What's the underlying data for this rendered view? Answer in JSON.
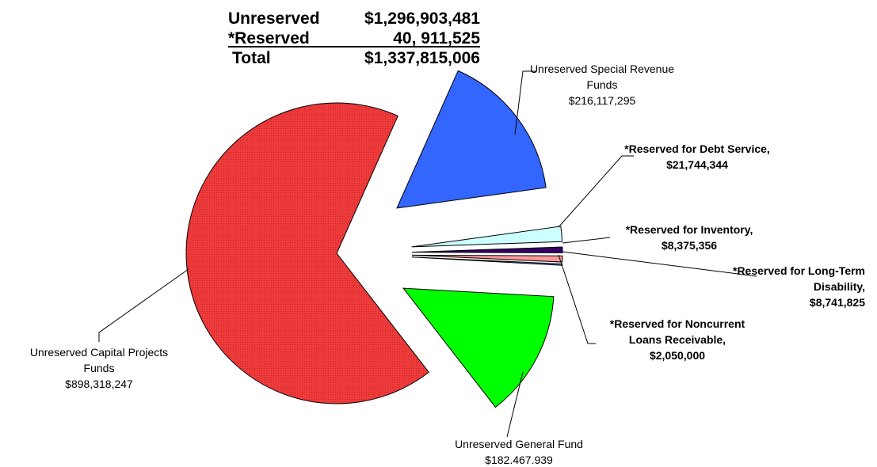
{
  "summary": {
    "rows": [
      {
        "label": "Unreserved",
        "value": "$1,296,903,481"
      },
      {
        "label": "*Reserved",
        "value": "40, 911,525"
      },
      {
        "label": "Total",
        "value": "$1,337,815,006"
      }
    ]
  },
  "chart_data": {
    "type": "pie",
    "categories": [
      "Unreserved Capital Projects Funds",
      "Unreserved Special Revenue Funds",
      "*Reserved for Debt Service,",
      "*Reserved for Inventory,",
      "*Reserved for Long-Term Disability,",
      "*Reserved for Noncurrent Loans Receivable,",
      "Unreserved General Fund"
    ],
    "values": [
      898318247,
      216117295,
      21744344,
      8375356,
      8741825,
      2050000,
      182467939
    ],
    "value_labels": [
      "$898,318,247",
      "$216,117,295",
      "$21,744,344",
      "$8,375,356",
      "$8,741,825",
      "$2,050,000",
      "$182.467.939"
    ],
    "colors": [
      "#ee3b3b",
      "#3366ff",
      "#ccffff",
      "#330066",
      "#ff9999",
      "#6699ff",
      "#00ff00"
    ]
  }
}
